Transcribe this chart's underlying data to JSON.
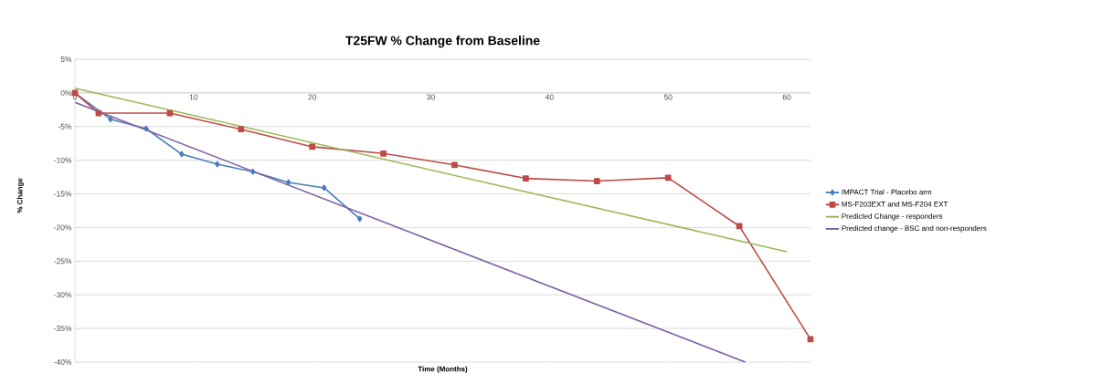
{
  "chart_data": {
    "type": "line",
    "title": "T25FW % Change from Baseline",
    "xlabel": "Time (Months)",
    "ylabel": "% Change",
    "xlim": [
      0,
      62
    ],
    "xticks": [
      0,
      10,
      20,
      30,
      40,
      50,
      60
    ],
    "ylim": [
      -40,
      5
    ],
    "yticks": [
      {
        "value": 5,
        "label": "5%"
      },
      {
        "value": 0,
        "label": "0%"
      },
      {
        "value": -5,
        "label": "-5%"
      },
      {
        "value": -10,
        "label": "-10%"
      },
      {
        "value": -15,
        "label": "-15%"
      },
      {
        "value": -20,
        "label": "-20%"
      },
      {
        "value": -25,
        "label": "-25%"
      },
      {
        "value": -30,
        "label": "-30%"
      },
      {
        "value": -35,
        "label": "-35%"
      },
      {
        "value": -40,
        "label": "-40%"
      }
    ],
    "grid": "y",
    "legend": "right",
    "line_style": "solid",
    "series": [
      {
        "name": "IMPACT Trial - Placebo arm",
        "color": "#4a7ebb",
        "marker": "diamond",
        "x": [
          0,
          3,
          6,
          9,
          12,
          15,
          18,
          21,
          24
        ],
        "values": [
          0,
          -3.9,
          -5.3,
          -9.1,
          -10.6,
          -11.7,
          -13.3,
          -14.1,
          -18.7
        ]
      },
      {
        "name": "MS-F203EXT and MS-F204 EXT",
        "color": "#be4b48",
        "marker": "square",
        "x": [
          0,
          2,
          8,
          14,
          20,
          26,
          32,
          38,
          44,
          50,
          56,
          62
        ],
        "values": [
          0,
          -3.0,
          -3.0,
          -5.4,
          -8.0,
          -9.0,
          -10.7,
          -12.7,
          -13.1,
          -12.6,
          -19.8,
          -36.6
        ]
      },
      {
        "name": "Predicted Change - responders",
        "color": "#98b954",
        "marker": "none",
        "x": [
          0,
          60
        ],
        "values": [
          0.7,
          -23.6
        ]
      },
      {
        "name": "Predicted change - BSC and non-responders",
        "color": "#7d60a0",
        "marker": "none",
        "x": [
          0,
          56.5
        ],
        "values": [
          -1.4,
          -40
        ]
      }
    ]
  }
}
